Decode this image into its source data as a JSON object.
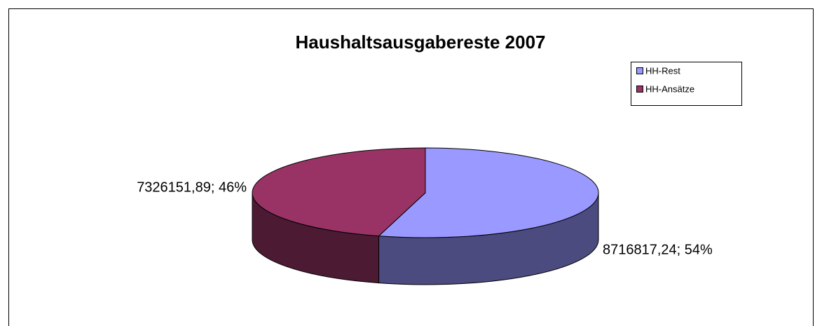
{
  "chart_data": {
    "type": "pie3d",
    "title": "Haushaltsausgabereste 2007",
    "categories": [
      "HH-Rest",
      "HH-Ansätze"
    ],
    "values": [
      8716817.24,
      7326151.89
    ],
    "value_labels": [
      "8716817,24; 54%",
      "7326151,89; 46%"
    ],
    "colors": [
      "#9999ff",
      "#993366"
    ],
    "side_colors": [
      "#4b4b80",
      "#4c1a33"
    ],
    "legend": "top-right"
  }
}
